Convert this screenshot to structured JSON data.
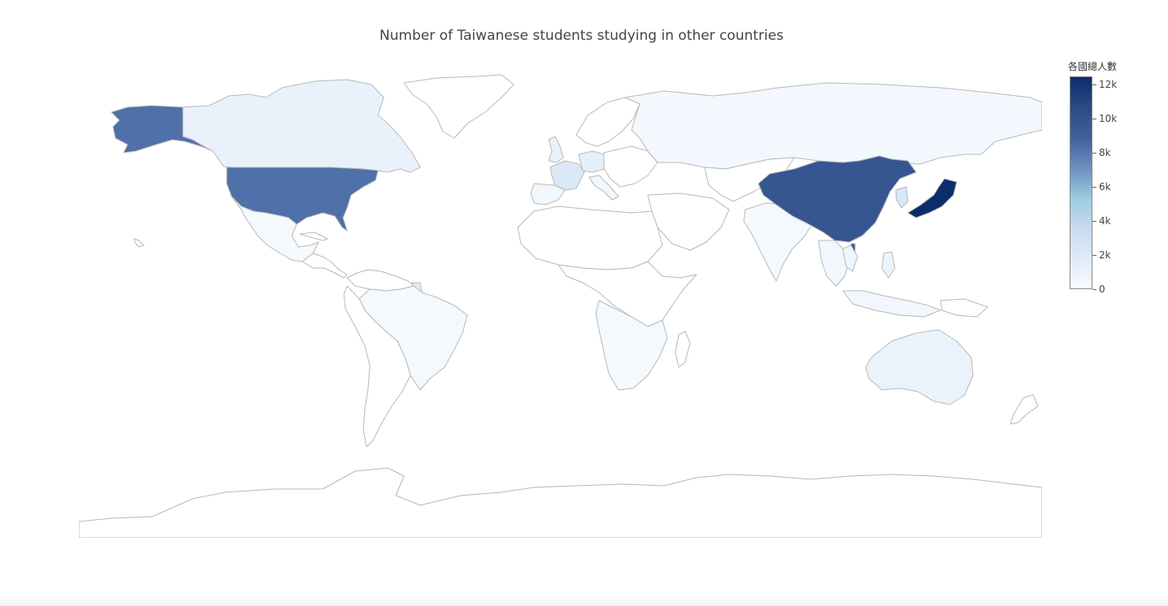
{
  "title": "Number of Taiwanese students studying in other countries",
  "colorbar": {
    "title": "各國總人數",
    "min": 0,
    "max": 12500,
    "ticks": [
      {
        "label": "12k",
        "value": 12000
      },
      {
        "label": "10k",
        "value": 10000
      },
      {
        "label": "8k",
        "value": 8000
      },
      {
        "label": "6k",
        "value": 6000
      },
      {
        "label": "4k",
        "value": 4000
      },
      {
        "label": "2k",
        "value": 2000
      },
      {
        "label": "0",
        "value": 0
      }
    ],
    "colorscale": [
      "#f7fbff",
      "#deebf7",
      "#c6dbef",
      "#9ecae1",
      "#6c8ebf",
      "#40609b",
      "#2c4a86",
      "#0b2d6b"
    ]
  },
  "chart_data": {
    "type": "choropleth",
    "projection": "equirectangular",
    "color_scale": "Blues",
    "color_range": [
      0,
      12500
    ],
    "values": [
      {
        "country": "Japan",
        "value": 12500
      },
      {
        "country": "China",
        "value": 9800
      },
      {
        "country": "United States",
        "value": 8300
      },
      {
        "country": "Korea",
        "value": 2200
      },
      {
        "country": "France",
        "value": 2000
      },
      {
        "country": "Suriname",
        "value": 1800
      },
      {
        "country": "Germany",
        "value": 1200
      },
      {
        "country": "Canada",
        "value": 1000
      },
      {
        "country": "United Kingdom",
        "value": 1000
      },
      {
        "country": "Australia",
        "value": 900
      },
      {
        "country": "Philippines",
        "value": 800
      },
      {
        "country": "Vietnam",
        "value": 600
      },
      {
        "country": "Spain",
        "value": 500
      },
      {
        "country": "Italy",
        "value": 500
      },
      {
        "country": "Thailand",
        "value": 400
      },
      {
        "country": "Malaysia",
        "value": 400
      },
      {
        "country": "Russia",
        "value": 300
      },
      {
        "country": "Brazil",
        "value": 200
      },
      {
        "country": "India",
        "value": 200
      },
      {
        "country": "Mexico",
        "value": 200
      },
      {
        "country": "South Africa",
        "value": 200
      }
    ]
  }
}
